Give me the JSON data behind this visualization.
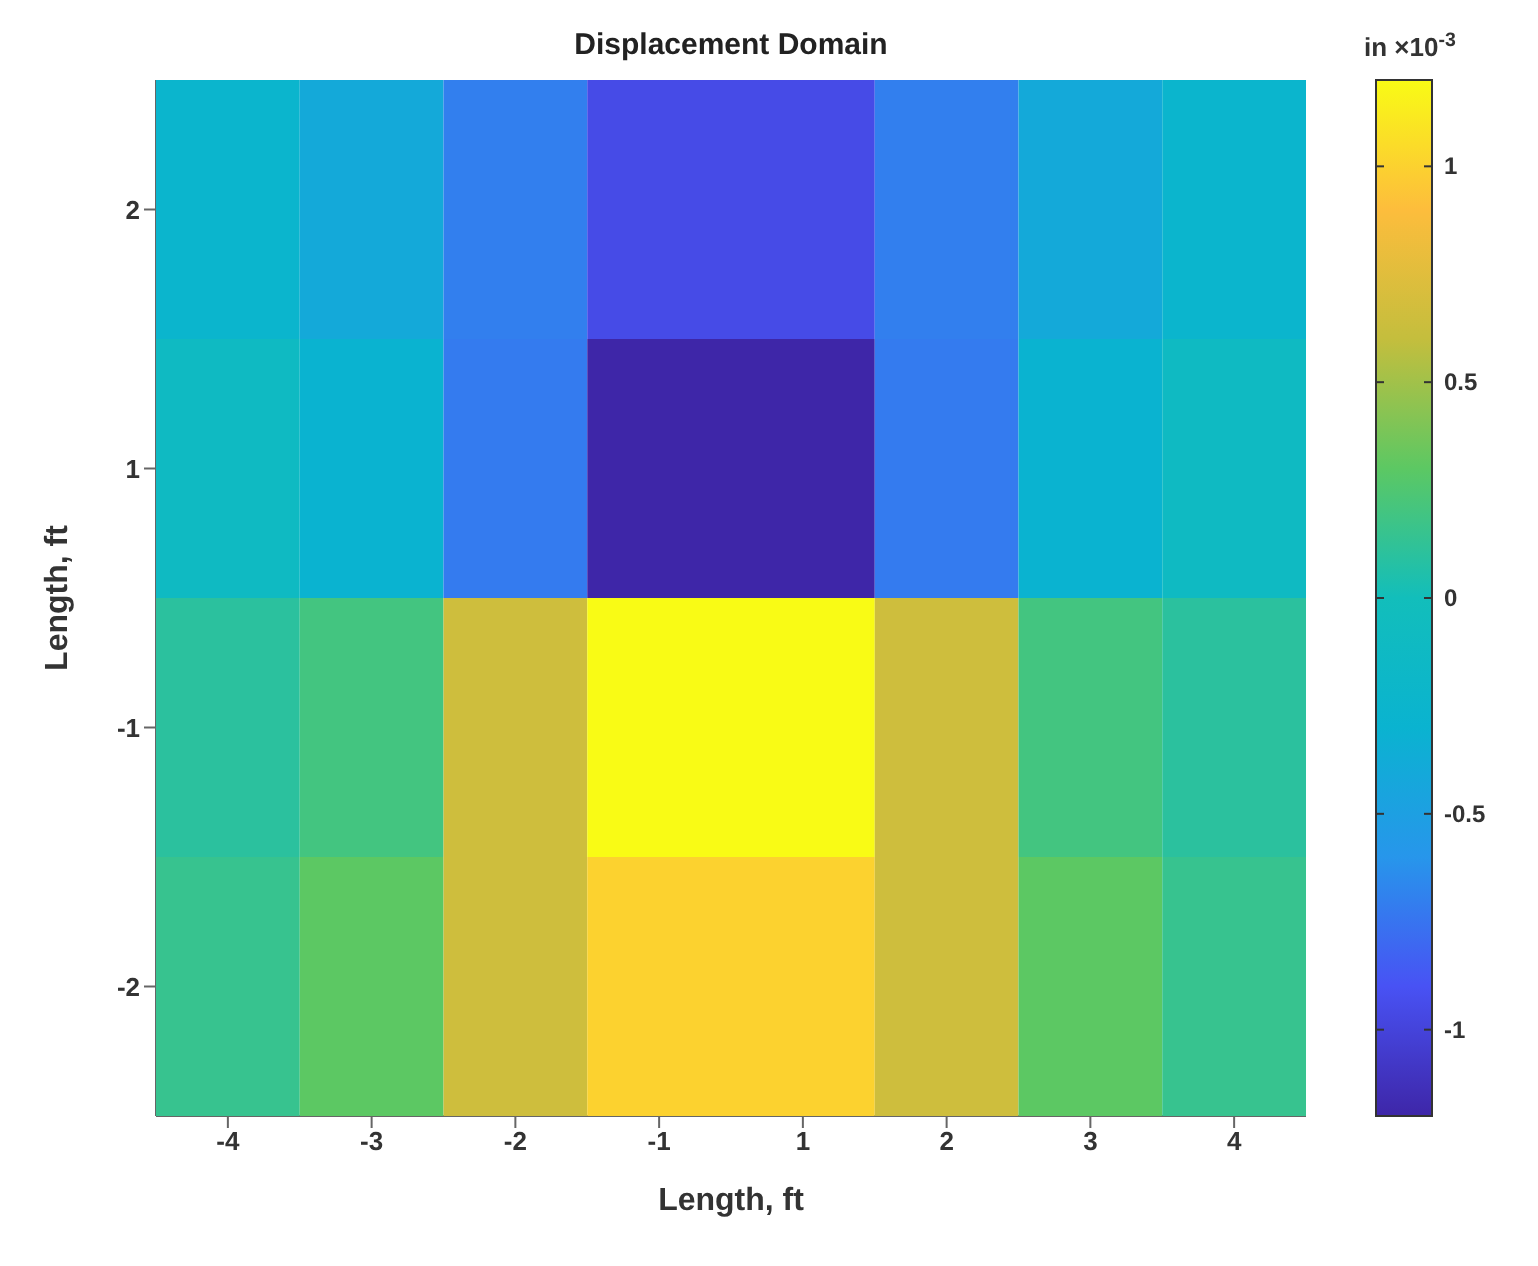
{
  "chart_data": {
    "type": "heatmap",
    "title": "Displacement Domain",
    "xlabel": "Length, ft",
    "ylabel": "Length, ft",
    "clabel": "in ×10$^{-3}$",
    "categories": [
      "-4",
      "-3",
      "-2",
      "-1",
      "1",
      "2",
      "3",
      "4"
    ],
    "y_categories": [
      "2",
      "1",
      "-1",
      "-2"
    ],
    "cells": [
      [
        -0.25,
        -0.4,
        -0.7,
        -0.95,
        -0.95,
        -0.7,
        -0.4,
        -0.25
      ],
      [
        -0.1,
        -0.3,
        -0.72,
        -1.2,
        -1.2,
        -0.72,
        -0.3,
        -0.1
      ],
      [
        0.1,
        0.2,
        0.65,
        1.2,
        1.2,
        0.65,
        0.2,
        0.1
      ],
      [
        0.15,
        0.3,
        0.65,
        1.0,
        1.0,
        0.65,
        0.3,
        0.15
      ]
    ],
    "clim": [
      -1.2,
      1.2
    ],
    "cticks": [
      -1,
      -0.5,
      0,
      0.5,
      1
    ]
  }
}
